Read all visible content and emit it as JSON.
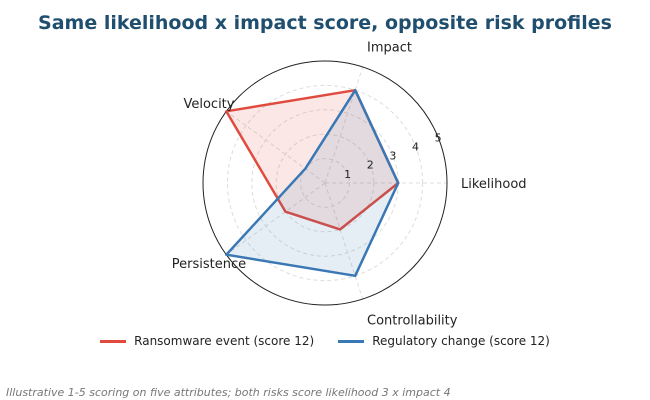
{
  "chart_data": {
    "type": "radar",
    "title": "Same likelihood x impact score, opposite risk profiles",
    "axes": [
      "Likelihood",
      "Impact",
      "Velocity",
      "Persistence",
      "Controllability"
    ],
    "rlim": [
      0,
      5
    ],
    "rticks": [
      "1",
      "2",
      "3",
      "4",
      "5"
    ],
    "grid": true,
    "legend_position": "bottom",
    "series": [
      {
        "name": "Ransomware event (score 12)",
        "color": "#e04a3f",
        "values": [
          3,
          4,
          5,
          2,
          2
        ]
      },
      {
        "name": "Regulatory change (score 12)",
        "color": "#3a78b5",
        "values": [
          3,
          4,
          1,
          5,
          4
        ]
      }
    ],
    "footnote": "Illustrative 1-5 scoring on five attributes; both risks score likelihood 3 x impact 4"
  }
}
